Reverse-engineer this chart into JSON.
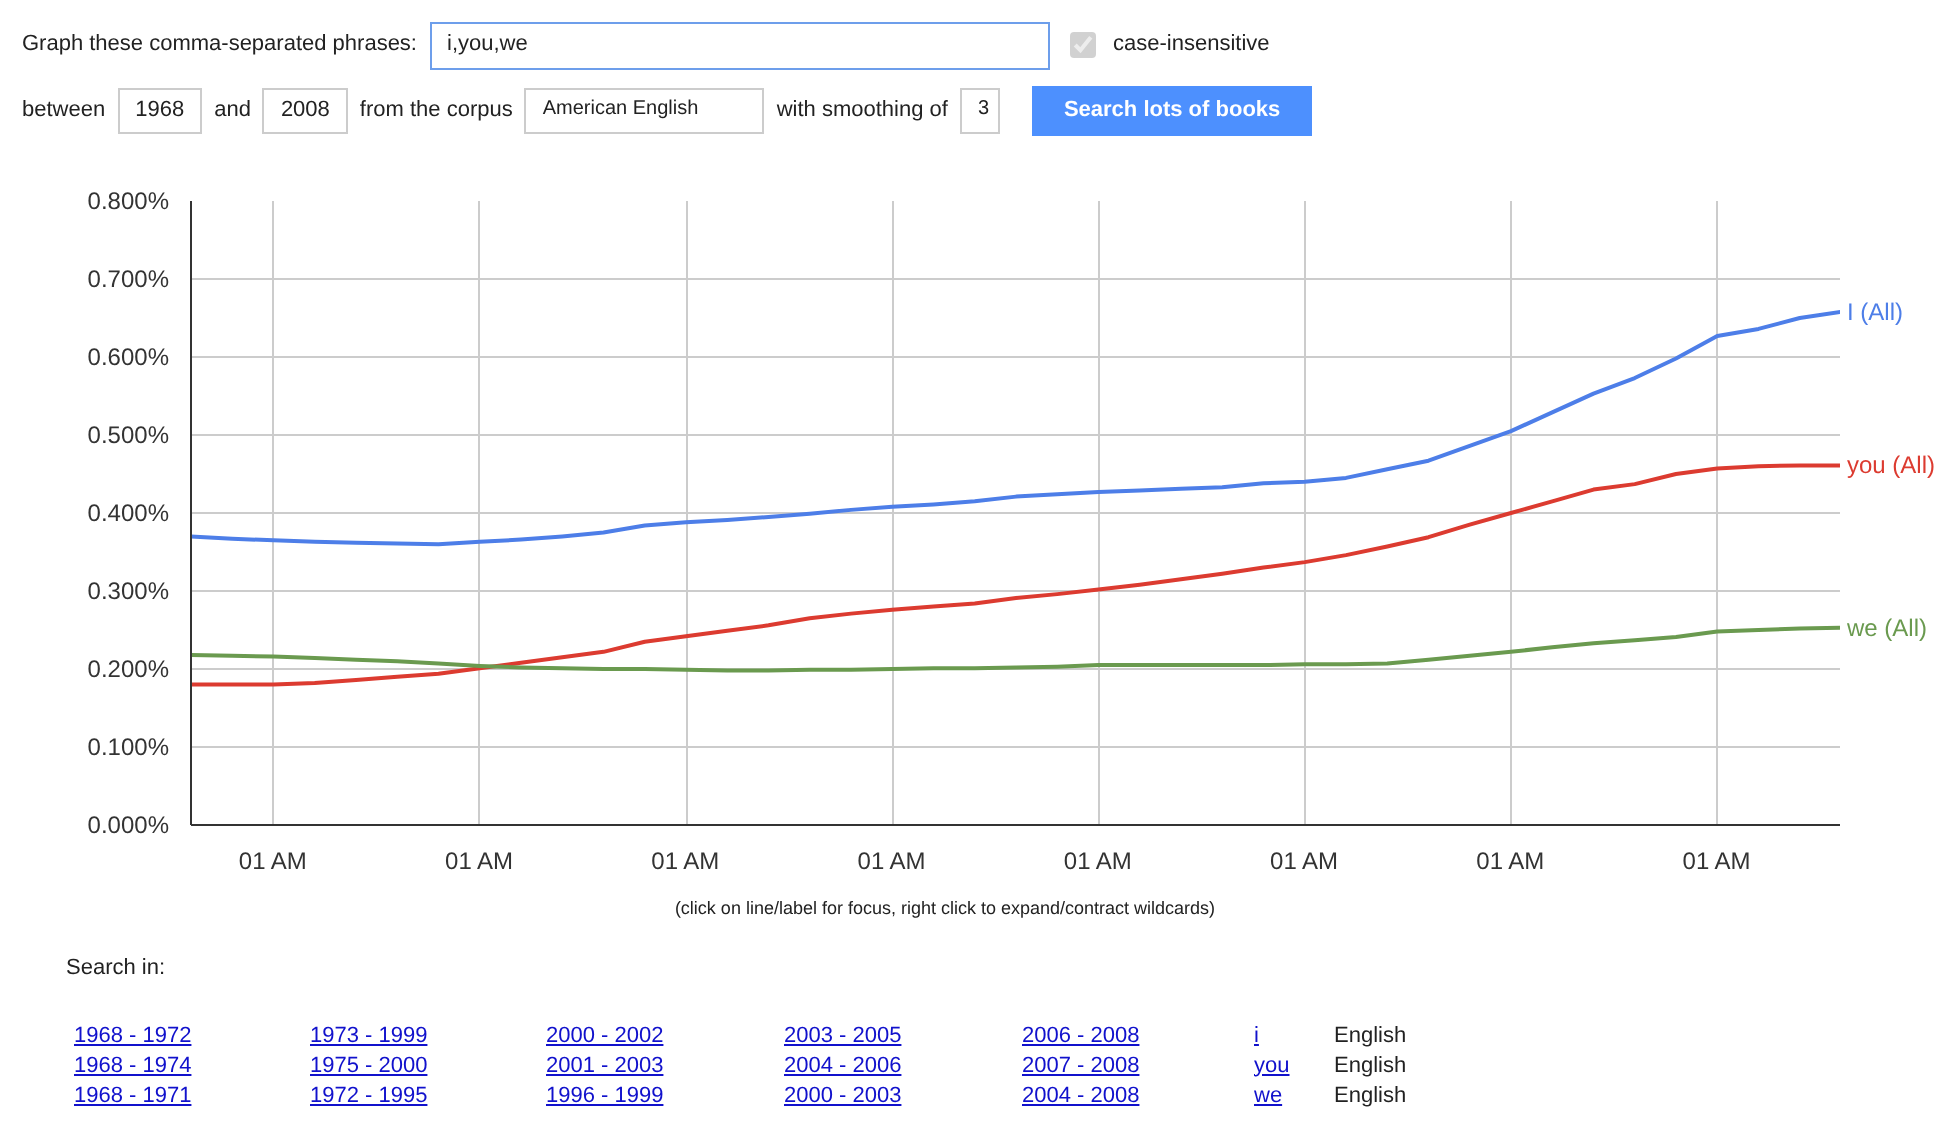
{
  "chart_data": {
    "type": "line",
    "ylim": [
      0,
      0.8
    ],
    "categories": [
      null,
      null,
      "01 AM",
      null,
      null,
      null,
      null,
      "01 AM",
      null,
      null,
      null,
      null,
      "01 AM",
      null,
      null,
      null,
      null,
      "01 AM",
      null,
      null,
      null,
      null,
      "01 AM",
      null,
      null,
      null,
      null,
      "01 AM",
      null,
      null,
      null,
      null,
      "01 AM",
      null,
      null,
      null,
      null,
      "01 AM",
      null,
      null,
      null
    ],
    "yticks": [
      {
        "value": 0,
        "label": "0.000%"
      },
      {
        "value": 0.1,
        "label": "0.100%"
      },
      {
        "value": 0.2,
        "label": "0.200%"
      },
      {
        "value": 0.3,
        "label": "0.300%"
      },
      {
        "value": 0.4,
        "label": "0.400%"
      },
      {
        "value": 0.5,
        "label": "0.500%"
      },
      {
        "value": 0.6,
        "label": "0.600%"
      },
      {
        "value": 0.7,
        "label": "0.700%"
      },
      {
        "value": 0.8,
        "label": "0.800%"
      }
    ],
    "grid": true,
    "line_style": "solid",
    "series": [
      {
        "name": "I (All)",
        "color": "#4d7ee8",
        "values": [
          0.37,
          0.367,
          0.365,
          0.363,
          0.362,
          0.361,
          0.36,
          0.363,
          0.366,
          0.37,
          0.375,
          0.384,
          0.388,
          0.391,
          0.395,
          0.399,
          0.404,
          0.408,
          0.411,
          0.415,
          0.421,
          0.424,
          0.427,
          0.429,
          0.431,
          0.433,
          0.438,
          0.44,
          0.445,
          0.456,
          0.467,
          0.486,
          0.505,
          0.529,
          0.553,
          0.573,
          0.598,
          0.627,
          0.636,
          0.65,
          0.658
        ]
      },
      {
        "name": "you (All)",
        "color": "#dc3b30",
        "values": [
          0.18,
          0.18,
          0.18,
          0.182,
          0.186,
          0.19,
          0.194,
          0.201,
          0.208,
          0.215,
          0.222,
          0.235,
          0.242,
          0.249,
          0.256,
          0.265,
          0.271,
          0.276,
          0.28,
          0.284,
          0.291,
          0.296,
          0.302,
          0.308,
          0.315,
          0.322,
          0.33,
          0.337,
          0.346,
          0.357,
          0.369,
          0.385,
          0.4,
          0.415,
          0.43,
          0.437,
          0.45,
          0.457,
          0.46,
          0.461,
          0.461
        ]
      },
      {
        "name": "we (All)",
        "color": "#6a9a4f",
        "values": [
          0.218,
          0.217,
          0.216,
          0.214,
          0.212,
          0.21,
          0.207,
          0.204,
          0.202,
          0.201,
          0.2,
          0.2,
          0.199,
          0.198,
          0.198,
          0.199,
          0.199,
          0.2,
          0.201,
          0.201,
          0.202,
          0.203,
          0.205,
          0.205,
          0.205,
          0.205,
          0.205,
          0.206,
          0.206,
          0.207,
          0.212,
          0.217,
          0.222,
          0.228,
          0.233,
          0.237,
          0.241,
          0.248,
          0.25,
          0.252,
          0.253
        ]
      }
    ],
    "annotations": [
      "Graph these comma-separated phrases:",
      "i,you,we",
      "case-insensitive",
      "between",
      "1968",
      "and",
      "2008",
      "from the corpus",
      "American English",
      "with smoothing of",
      "3",
      "Search lots of books",
      "(click on line/label for focus, right click to expand/contract wildcards)",
      "Search in:",
      "1968 - 1972",
      "1973 - 1999",
      "2000 - 2002",
      "2003 - 2005",
      "2006 - 2008",
      "i",
      "English",
      "1968 - 1974",
      "1975 - 2000",
      "2001 - 2003",
      "2004 - 2006",
      "2007 - 2008",
      "you",
      "English",
      "1968 - 1971",
      "1972 - 1995",
      "1996 - 1999",
      "2000 - 2003",
      "2004 - 2008",
      "we",
      "English"
    ]
  }
}
